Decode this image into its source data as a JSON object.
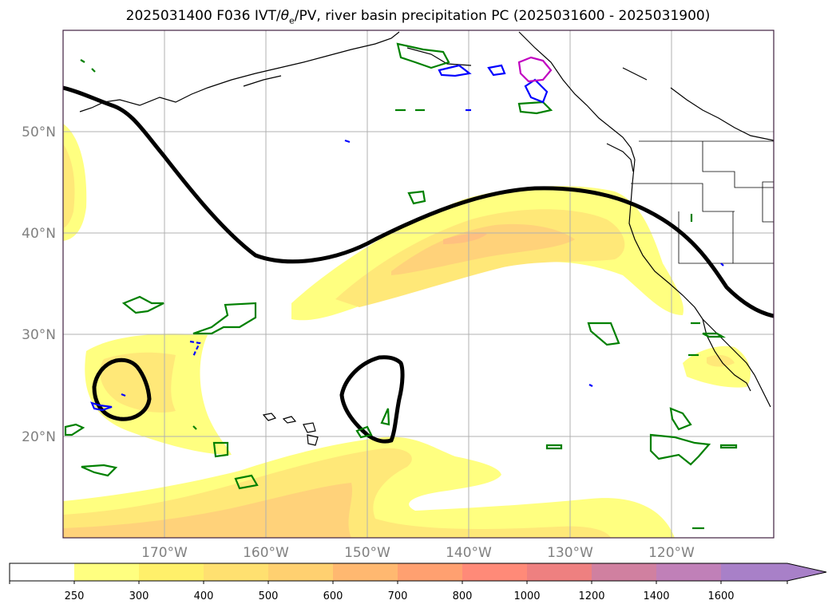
{
  "title": {
    "prefix": "2025031400 F036 IVT/",
    "theta_symbol": "θ",
    "theta_sub": "e",
    "suffix": "/PV, river basin precipitation PC (2025031600 - 2025031900)"
  },
  "lat_labels": [
    "50°N",
    "40°N",
    "30°N",
    "20°N"
  ],
  "lon_labels": [
    "170°W",
    "160°W",
    "150°W",
    "140°W",
    "130°W",
    "120°W"
  ],
  "colorbar": {
    "levels": [
      "250",
      "300",
      "400",
      "500",
      "600",
      "700",
      "800",
      "1000",
      "1200",
      "1400",
      "1600"
    ],
    "colors": [
      "#ffffff",
      "#ffff80",
      "#fff06a",
      "#ffe070",
      "#ffd070",
      "#ffb870",
      "#ffa070",
      "#ff8a78",
      "#ee8080",
      "#d080a0",
      "#c080b8",
      "#a880c8"
    ],
    "extend": "max"
  },
  "map": {
    "lat_range": [
      10,
      60
    ],
    "lon_range": [
      -180,
      -110
    ],
    "grid": true,
    "ivt_shading_colors": [
      "#ffff80",
      "#ffe878",
      "#ffd27a",
      "#ffc080"
    ],
    "pv_contour_color": "#000000",
    "precip_pc_colors": [
      "#008000",
      "#0000ff",
      "#c000c0"
    ]
  }
}
